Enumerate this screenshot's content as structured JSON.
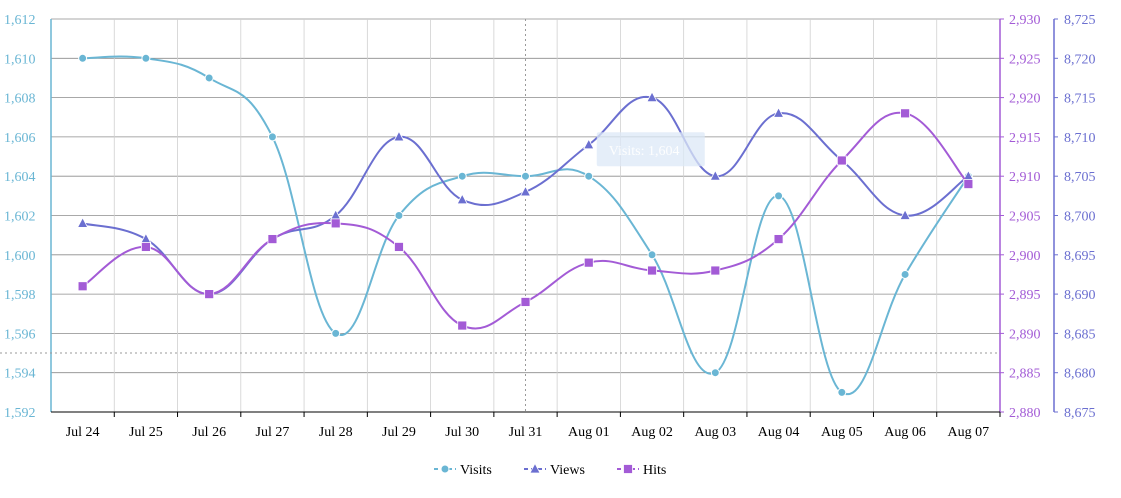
{
  "chart_data": {
    "type": "line",
    "categories": [
      "Jul 24",
      "Jul 25",
      "Jul 26",
      "Jul 27",
      "Jul 28",
      "Jul 29",
      "Jul 30",
      "Jul 31",
      "Aug 01",
      "Aug 02",
      "Aug 03",
      "Aug 04",
      "Aug 05",
      "Aug 06",
      "Aug 07"
    ],
    "series": [
      {
        "name": "Visits",
        "axis": "left",
        "color": "#6ab6d4",
        "marker": "circle",
        "values": [
          1610,
          1610,
          1609,
          1606,
          1596,
          1602,
          1604,
          1604,
          1604,
          1600,
          1594,
          1603,
          1593,
          1599,
          1604
        ]
      },
      {
        "name": "Views",
        "axis": "right",
        "color": "#6b6fd0",
        "marker": "triangle",
        "values": [
          8699,
          8697,
          8690,
          8697,
          8700,
          8710,
          8702,
          8703,
          8709,
          8715,
          8705,
          8713,
          8707,
          8700,
          8705
        ]
      },
      {
        "name": "Hits",
        "axis": "mid",
        "color": "#a35bd6",
        "marker": "square",
        "values": [
          2896,
          2901,
          2895,
          2902,
          2904,
          2901,
          2891,
          2894,
          2899,
          2898,
          2898,
          2902,
          2912,
          2918,
          2909
        ]
      }
    ],
    "axes": {
      "left": {
        "min": 1592,
        "max": 1612,
        "step": 2,
        "ticks": [
          "1,592",
          "1,594",
          "1,596",
          "1,598",
          "1,600",
          "1,602",
          "1,604",
          "1,606",
          "1,608",
          "1,610",
          "1,612"
        ]
      },
      "mid": {
        "min": 2880,
        "max": 2930,
        "step": 5,
        "ticks": [
          "2,880",
          "2,885",
          "2,890",
          "2,895",
          "2,900",
          "2,905",
          "2,910",
          "2,915",
          "2,920",
          "2,925",
          "2,930"
        ]
      },
      "right": {
        "min": 8675,
        "max": 8725,
        "step": 5,
        "ticks": [
          "8,675",
          "8,680",
          "8,685",
          "8,690",
          "8,695",
          "8,700",
          "8,705",
          "8,710",
          "8,715",
          "8,720",
          "8,725"
        ]
      }
    },
    "grid": true,
    "legend_position": "bottom-center",
    "crosshair": {
      "category": "Jul 31",
      "left_value": 1595
    },
    "tooltip": {
      "text": "Visits: 1,604"
    }
  }
}
